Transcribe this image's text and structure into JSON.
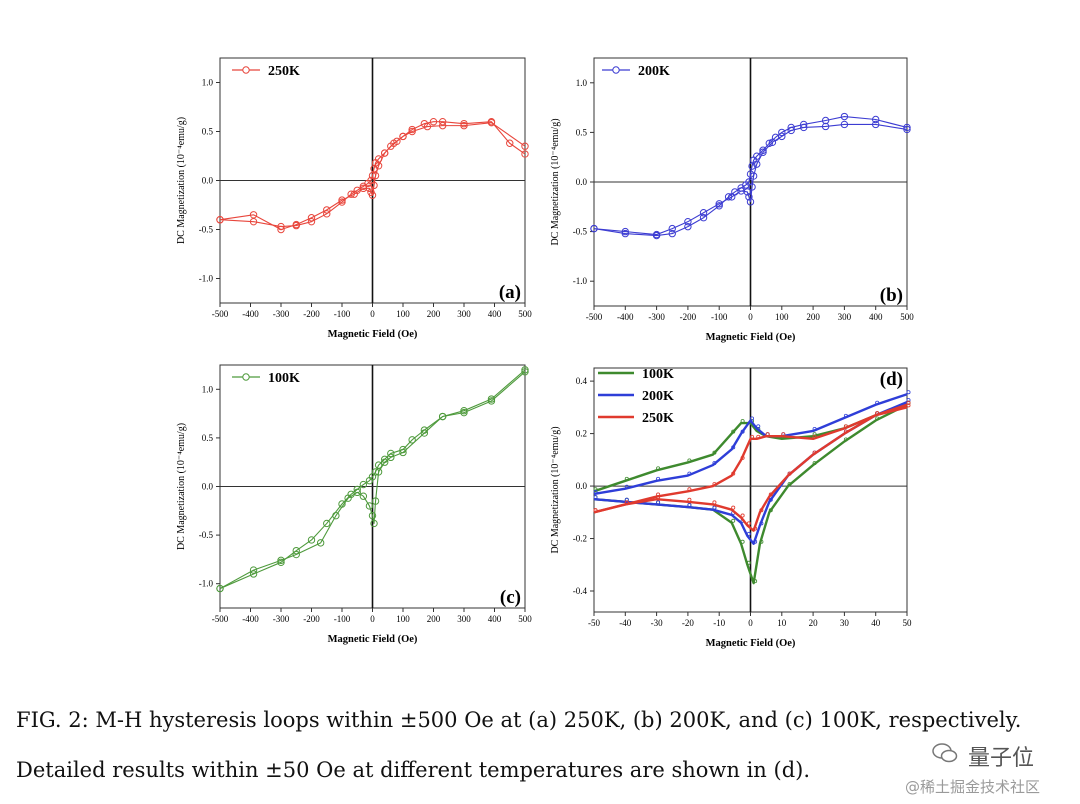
{
  "chart_data": [
    {
      "type": "scatter",
      "panel_label": "(a)",
      "xlabel": "Magnetic Field (Oe)",
      "ylabel": "DC Magnetization (10⁻⁴emu/g)",
      "xlim": [
        -500,
        500
      ],
      "ylim": [
        -1.25,
        1.25
      ],
      "xticks": [
        -500,
        -400,
        -300,
        -200,
        -100,
        0,
        100,
        200,
        300,
        400,
        500
      ],
      "yticks": [
        -1.0,
        -0.5,
        0.0,
        0.5,
        1.0
      ],
      "legend": "top-left",
      "color": "#e8463c",
      "series": [
        {
          "name": "250K",
          "x": [
            -500,
            -390,
            -300,
            -250,
            -200,
            -150,
            -100,
            -70,
            -50,
            -30,
            -15,
            -5,
            0,
            5,
            10,
            20,
            40,
            60,
            80,
            100,
            130,
            170,
            200,
            230,
            300,
            390,
            450,
            500
          ],
          "y": [
            -0.4,
            -0.42,
            -0.47,
            -0.46,
            -0.42,
            -0.34,
            -0.22,
            -0.14,
            -0.1,
            -0.06,
            -0.03,
            0.0,
            0.05,
            0.12,
            0.18,
            0.22,
            0.28,
            0.35,
            0.4,
            0.45,
            0.52,
            0.58,
            0.6,
            0.6,
            0.58,
            0.6,
            0.38,
            0.27
          ]
        },
        {
          "name": "",
          "x": [
            500,
            390,
            300,
            230,
            180,
            130,
            100,
            70,
            40,
            20,
            10,
            5,
            0,
            -5,
            -10,
            -30,
            -60,
            -100,
            -150,
            -200,
            -250,
            -300,
            -390,
            -500
          ],
          "y": [
            0.35,
            0.59,
            0.56,
            0.56,
            0.55,
            0.5,
            0.45,
            0.38,
            0.28,
            0.15,
            0.05,
            -0.05,
            -0.15,
            -0.12,
            -0.08,
            -0.08,
            -0.14,
            -0.2,
            -0.3,
            -0.38,
            -0.45,
            -0.5,
            -0.35,
            -0.4
          ]
        }
      ]
    },
    {
      "type": "scatter",
      "panel_label": "(b)",
      "xlabel": "Magnetic Field (Oe)",
      "ylabel": "DC Magnetization (10⁻⁴emu/g)",
      "xlim": [
        -500,
        500
      ],
      "ylim": [
        -1.25,
        1.25
      ],
      "xticks": [
        -500,
        -400,
        -300,
        -200,
        -100,
        0,
        100,
        200,
        300,
        400,
        500
      ],
      "yticks": [
        -1.0,
        -0.5,
        0.0,
        0.5,
        1.0
      ],
      "legend": "top-left",
      "color": "#3c3cd2",
      "series": [
        {
          "name": "200K",
          "x": [
            -500,
            -400,
            -300,
            -250,
            -200,
            -150,
            -100,
            -70,
            -50,
            -30,
            -15,
            -5,
            0,
            5,
            10,
            20,
            40,
            60,
            80,
            100,
            130,
            170,
            240,
            300,
            400,
            500
          ],
          "y": [
            -0.47,
            -0.52,
            -0.54,
            -0.52,
            -0.45,
            -0.36,
            -0.24,
            -0.15,
            -0.1,
            -0.06,
            -0.03,
            0.0,
            0.08,
            0.16,
            0.22,
            0.26,
            0.32,
            0.39,
            0.45,
            0.5,
            0.55,
            0.58,
            0.62,
            0.66,
            0.63,
            0.55
          ]
        },
        {
          "name": "",
          "x": [
            500,
            400,
            300,
            240,
            170,
            130,
            100,
            70,
            40,
            20,
            10,
            5,
            0,
            -5,
            -10,
            -30,
            -60,
            -100,
            -150,
            -200,
            -250,
            -300,
            -400,
            -500
          ],
          "y": [
            0.53,
            0.58,
            0.58,
            0.56,
            0.55,
            0.52,
            0.46,
            0.4,
            0.3,
            0.18,
            0.06,
            -0.05,
            -0.2,
            -0.15,
            -0.1,
            -0.09,
            -0.15,
            -0.22,
            -0.31,
            -0.4,
            -0.47,
            -0.53,
            -0.5,
            -0.47
          ]
        }
      ]
    },
    {
      "type": "scatter",
      "panel_label": "(c)",
      "xlabel": "Magnetic Field (Oe)",
      "ylabel": "DC Magnetization (10⁻⁴emu/g)",
      "xlim": [
        -500,
        500
      ],
      "ylim": [
        -1.25,
        1.25
      ],
      "xticks": [
        -500,
        -400,
        -300,
        -200,
        -100,
        0,
        100,
        200,
        300,
        400,
        500
      ],
      "yticks": [
        -1.0,
        -0.5,
        0.0,
        0.5,
        1.0
      ],
      "legend": "top-left",
      "color": "#4e9a3c",
      "series": [
        {
          "name": "100K",
          "x": [
            -500,
            -390,
            -300,
            -250,
            -200,
            -150,
            -100,
            -70,
            -50,
            -30,
            -10,
            0,
            10,
            20,
            40,
            60,
            100,
            130,
            170,
            230,
            300,
            390,
            500
          ],
          "y": [
            -1.05,
            -0.9,
            -0.78,
            -0.66,
            -0.55,
            -0.38,
            -0.18,
            -0.08,
            -0.03,
            0.02,
            0.06,
            0.1,
            0.15,
            0.22,
            0.28,
            0.34,
            0.38,
            0.48,
            0.58,
            0.72,
            0.78,
            0.9,
            1.2
          ]
        },
        {
          "name": "",
          "x": [
            500,
            390,
            300,
            230,
            170,
            100,
            60,
            40,
            20,
            10,
            5,
            0,
            -10,
            -30,
            -50,
            -80,
            -120,
            -170,
            -250,
            -300,
            -390,
            -500
          ],
          "y": [
            1.18,
            0.88,
            0.76,
            0.72,
            0.55,
            0.35,
            0.3,
            0.25,
            0.15,
            -0.15,
            -0.38,
            -0.3,
            -0.2,
            -0.1,
            -0.06,
            -0.12,
            -0.3,
            -0.58,
            -0.7,
            -0.76,
            -0.86,
            -1.05
          ]
        }
      ]
    },
    {
      "type": "line",
      "panel_label": "(d)",
      "xlabel": "Magnetic Field (Oe)",
      "ylabel": "DC Magnetization (10⁻⁴emu/g)",
      "xlim": [
        -50,
        50
      ],
      "ylim": [
        -0.48,
        0.45
      ],
      "xticks": [
        -50,
        -40,
        -30,
        -20,
        -10,
        0,
        10,
        20,
        30,
        40,
        50
      ],
      "yticks": [
        -0.4,
        -0.2,
        0.0,
        0.2,
        0.4
      ],
      "legend": "top-left",
      "series": [
        {
          "name": "100K",
          "color": "#3e8a2e",
          "x": [
            -50,
            -40,
            -30,
            -20,
            -12,
            -6,
            -3,
            0,
            2,
            5,
            10,
            20,
            30,
            40,
            50
          ],
          "y": [
            -0.02,
            0.02,
            0.06,
            0.09,
            0.12,
            0.2,
            0.24,
            0.24,
            0.21,
            0.19,
            0.18,
            0.19,
            0.22,
            0.27,
            0.31
          ]
        },
        {
          "name": "",
          "color": "#3e8a2e",
          "x": [
            50,
            40,
            30,
            20,
            12,
            6,
            3,
            1,
            -1,
            -3,
            -6,
            -12,
            -20,
            -30,
            -40,
            -50
          ],
          "y": [
            0.31,
            0.25,
            0.17,
            0.08,
            0.0,
            -0.1,
            -0.22,
            -0.37,
            -0.3,
            -0.22,
            -0.14,
            -0.09,
            -0.08,
            -0.07,
            -0.06,
            -0.05
          ]
        },
        {
          "name": "200K",
          "color": "#2e3ed8",
          "x": [
            -50,
            -40,
            -30,
            -20,
            -12,
            -6,
            -3,
            0,
            2,
            5,
            10,
            20,
            30,
            40,
            50
          ],
          "y": [
            -0.03,
            -0.01,
            0.02,
            0.04,
            0.08,
            0.14,
            0.2,
            0.25,
            0.22,
            0.19,
            0.19,
            0.21,
            0.26,
            0.31,
            0.35
          ]
        },
        {
          "name": "",
          "color": "#2e3ed8",
          "x": [
            50,
            40,
            30,
            20,
            12,
            6,
            3,
            1,
            -1,
            -3,
            -6,
            -12,
            -20,
            -30,
            -40,
            -50
          ],
          "y": [
            0.32,
            0.27,
            0.2,
            0.12,
            0.04,
            -0.06,
            -0.15,
            -0.22,
            -0.19,
            -0.14,
            -0.11,
            -0.09,
            -0.08,
            -0.07,
            -0.06,
            -0.05
          ]
        },
        {
          "name": "250K",
          "color": "#e03a2e",
          "x": [
            -50,
            -40,
            -30,
            -20,
            -12,
            -6,
            -3,
            0,
            2,
            5,
            10,
            20,
            30,
            40,
            50
          ],
          "y": [
            -0.1,
            -0.07,
            -0.04,
            -0.02,
            0.0,
            0.04,
            0.1,
            0.18,
            0.18,
            0.19,
            0.19,
            0.18,
            0.22,
            0.27,
            0.3
          ]
        },
        {
          "name": "",
          "color": "#e03a2e",
          "x": [
            50,
            40,
            30,
            20,
            12,
            6,
            3,
            1,
            -1,
            -3,
            -6,
            -12,
            -20,
            -30,
            -40,
            -50
          ],
          "y": [
            0.31,
            0.27,
            0.2,
            0.12,
            0.04,
            -0.04,
            -0.1,
            -0.17,
            -0.15,
            -0.12,
            -0.09,
            -0.07,
            -0.06,
            -0.05,
            -0.07,
            -0.1
          ]
        }
      ]
    }
  ],
  "caption": {
    "line1": "FIG. 2: M-H hysteresis loops within ±500 Oe at (a) 250K, (b) 200K, and (c) 100K, respectively.",
    "line2": "Detailed results within ±50 Oe at different temperatures are shown in (d)."
  },
  "watermark": {
    "brand": "量子位",
    "site": "@稀土掘金技术社区"
  }
}
